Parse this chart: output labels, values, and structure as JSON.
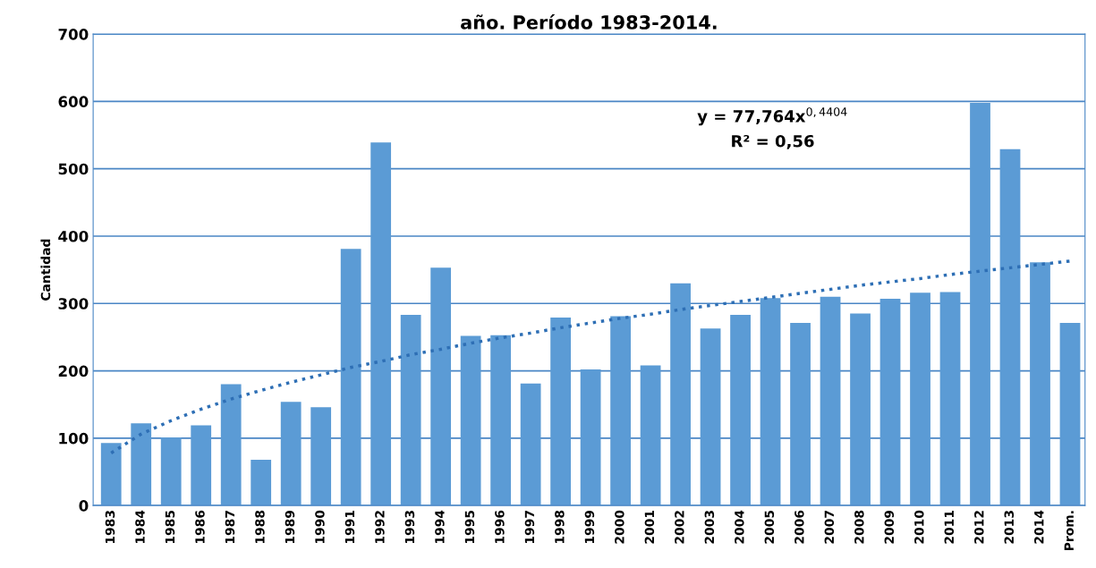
{
  "chart_data": {
    "type": "bar",
    "title": "año. Período 1983-2014.",
    "ylabel": "Cantidad",
    "categories": [
      "1983",
      "1984",
      "1985",
      "1986",
      "1987",
      "1988",
      "1989",
      "1990",
      "1991",
      "1992",
      "1993",
      "1994",
      "1995",
      "1996",
      "1997",
      "1998",
      "1999",
      "2000",
      "2001",
      "2002",
      "2003",
      "2004",
      "2005",
      "2006",
      "2007",
      "2008",
      "2009",
      "2010",
      "2011",
      "2012",
      "2013",
      "2014",
      "Prom."
    ],
    "series": [
      {
        "color": "#5b9bd5",
        "values": [
          93,
          122,
          101,
          119,
          180,
          68,
          154,
          146,
          381,
          539,
          283,
          353,
          252,
          253,
          181,
          279,
          202,
          281,
          208,
          330,
          263,
          283,
          308,
          271,
          310,
          285,
          307,
          316,
          317,
          598,
          529,
          361,
          271
        ]
      },
      {
        "type": "line",
        "color": "#2e6fb5",
        "line_style": "dotted",
        "values": [
          78,
          106,
          126,
          143,
          158,
          171,
          183,
          194,
          205,
          214,
          224,
          232,
          241,
          249,
          256,
          264,
          271,
          278,
          284,
          291,
          297,
          303,
          309,
          315,
          321,
          327,
          332,
          337,
          343,
          348,
          353,
          358,
          363
        ]
      }
    ],
    "ylim": [
      0,
      700
    ],
    "yticks": [
      0,
      100,
      200,
      300,
      400,
      500,
      600,
      700
    ],
    "grid": "y",
    "legend": false,
    "annotations": [
      "y = 77,764x$^{0,4404}$",
      "R² = 0,56"
    ]
  }
}
